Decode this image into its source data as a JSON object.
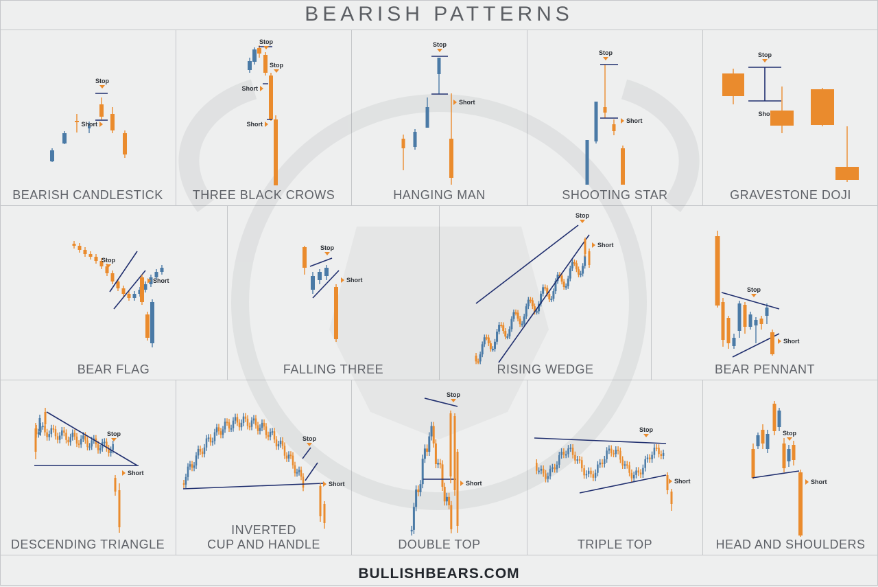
{
  "title": "BEARISH PATTERNS",
  "footer": "BULLISHBEARS.COM",
  "colors": {
    "bear": "#ea8b2d",
    "bull": "#4a7aa6",
    "line": "#1f2e6e",
    "text": "#5f6268",
    "bg": "#eeefef"
  },
  "notes": {
    "stop": "Stop",
    "short": "Short"
  },
  "panels": [
    {
      "id": "bearish-candlestick",
      "label": "BEARISH CANDLESTICK"
    },
    {
      "id": "three-black-crows",
      "label": "THREE BLACK CROWS"
    },
    {
      "id": "hanging-man",
      "label": "HANGING MAN"
    },
    {
      "id": "shooting-star",
      "label": "SHOOTING STAR"
    },
    {
      "id": "gravestone-doji",
      "label": "GRAVESTONE DOJI"
    },
    {
      "id": "bear-flag",
      "label": "BEAR FLAG"
    },
    {
      "id": "falling-three",
      "label": "FALLING THREE"
    },
    {
      "id": "rising-wedge",
      "label": "RISING WEDGE"
    },
    {
      "id": "bear-pennant",
      "label": "BEAR PENNANT"
    },
    {
      "id": "descending-triangle",
      "label": "DESCENDING TRIANGLE"
    },
    {
      "id": "inverted-cup-and-handle",
      "label_line1": "INVERTED",
      "label_line2": "CUP AND HANDLE"
    },
    {
      "id": "double-top",
      "label": "DOUBLE TOP"
    },
    {
      "id": "triple-top",
      "label": "TRIPLE TOP"
    },
    {
      "id": "head-and-shoulders",
      "label": "HEAD AND SHOULDERS"
    }
  ]
}
